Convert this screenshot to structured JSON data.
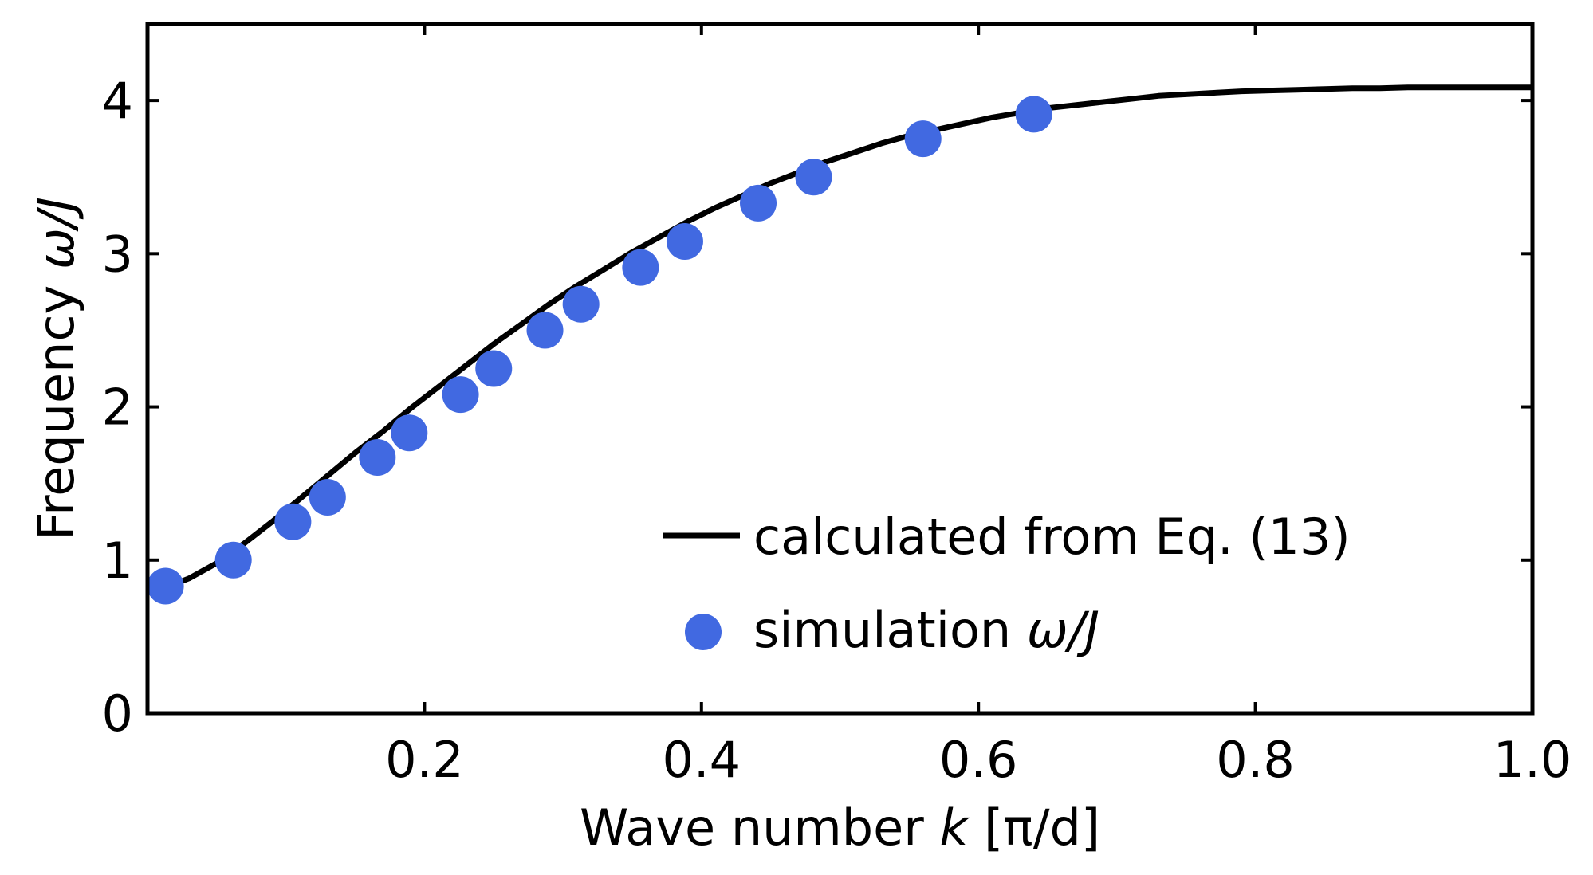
{
  "chart_data": {
    "type": "line+scatter",
    "title": "",
    "xlabel_prefix": "Wave number ",
    "xlabel_var": "k",
    "xlabel_suffix": " [π/d]",
    "ylabel_prefix": "Frequency ",
    "ylabel_var": "ω/J",
    "xlim": [
      0.0,
      1.0
    ],
    "ylim": [
      0,
      4.5
    ],
    "xticks": [
      0.2,
      0.4,
      0.6,
      0.8,
      1.0
    ],
    "xtick_labels": [
      "0.2",
      "0.4",
      "0.6",
      "0.8",
      "1.0"
    ],
    "yticks": [
      0,
      1,
      2,
      3,
      4
    ],
    "ytick_labels": [
      "0",
      "1",
      "2",
      "3",
      "4"
    ],
    "legend_position": "lower-right",
    "series": [
      {
        "name": "calculated from Eq. (13)",
        "kind": "line",
        "color": "#000000",
        "x": [
          0.013,
          0.03,
          0.05,
          0.07,
          0.09,
          0.11,
          0.13,
          0.15,
          0.17,
          0.19,
          0.21,
          0.23,
          0.25,
          0.27,
          0.29,
          0.31,
          0.33,
          0.35,
          0.37,
          0.39,
          0.41,
          0.43,
          0.45,
          0.47,
          0.49,
          0.51,
          0.53,
          0.55,
          0.57,
          0.59,
          0.61,
          0.63,
          0.65,
          0.67,
          0.69,
          0.71,
          0.73,
          0.75,
          0.77,
          0.79,
          0.81,
          0.83,
          0.85,
          0.87,
          0.89,
          0.91,
          0.93,
          0.95,
          0.97,
          0.99,
          1.0
        ],
        "y": [
          0.82,
          0.88,
          0.98,
          1.11,
          1.25,
          1.4,
          1.55,
          1.7,
          1.84,
          1.99,
          2.13,
          2.27,
          2.41,
          2.54,
          2.67,
          2.79,
          2.9,
          3.01,
          3.11,
          3.21,
          3.3,
          3.38,
          3.46,
          3.53,
          3.6,
          3.66,
          3.72,
          3.77,
          3.81,
          3.85,
          3.89,
          3.92,
          3.95,
          3.97,
          3.99,
          4.01,
          4.03,
          4.04,
          4.05,
          4.06,
          4.065,
          4.07,
          4.075,
          4.08,
          4.08,
          4.085,
          4.085,
          4.085,
          4.085,
          4.085,
          4.085
        ]
      },
      {
        "name_prefix": "simulation ",
        "name_var": "ω/J",
        "kind": "scatter",
        "color": "#4169e1",
        "x": [
          0.013,
          0.062,
          0.105,
          0.13,
          0.166,
          0.189,
          0.226,
          0.25,
          0.287,
          0.313,
          0.356,
          0.388,
          0.441,
          0.481,
          0.56,
          0.64
        ],
        "y": [
          0.83,
          1.0,
          1.25,
          1.41,
          1.67,
          1.83,
          2.08,
          2.25,
          2.5,
          2.67,
          2.91,
          3.08,
          3.33,
          3.5,
          3.75,
          3.91
        ]
      }
    ]
  }
}
